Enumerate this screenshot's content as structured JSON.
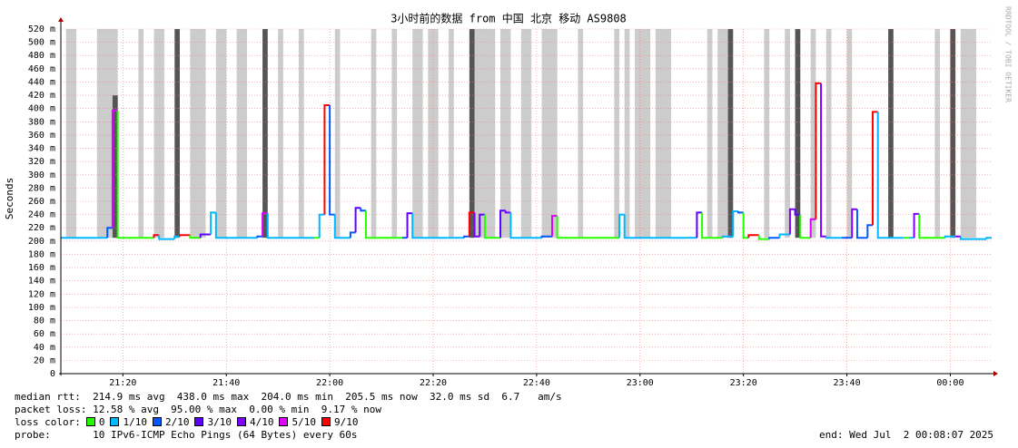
{
  "chart_data": {
    "type": "smokeping",
    "title": "3小时前的数据 from 中国 北京 移动 AS9808",
    "y_label": "Seconds",
    "side_label": "RRDTOOL / TOBI OETIKER",
    "ylim": [
      0,
      520
    ],
    "yticks": [
      0,
      {
        "value": 20,
        "label": "20 m"
      },
      {
        "value": 40,
        "label": "40 m"
      },
      {
        "value": 60,
        "label": "60 m"
      },
      {
        "value": 80,
        "label": "80 m"
      },
      {
        "value": 100,
        "label": "100 m"
      },
      {
        "value": 120,
        "label": "120 m"
      },
      {
        "value": 140,
        "label": "140 m"
      },
      {
        "value": 160,
        "label": "160 m"
      },
      {
        "value": 180,
        "label": "180 m"
      },
      {
        "value": 200,
        "label": "200 m"
      },
      {
        "value": 220,
        "label": "220 m"
      },
      {
        "value": 240,
        "label": "240 m"
      },
      {
        "value": 260,
        "label": "260 m"
      },
      {
        "value": 280,
        "label": "280 m"
      },
      {
        "value": 300,
        "label": "300 m"
      },
      {
        "value": 320,
        "label": "320 m"
      },
      {
        "value": 340,
        "label": "340 m"
      },
      {
        "value": 360,
        "label": "360 m"
      },
      {
        "value": 380,
        "label": "380 m"
      },
      {
        "value": 400,
        "label": "400 m"
      },
      {
        "value": 420,
        "label": "420 m"
      },
      {
        "value": 440,
        "label": "440 m"
      },
      {
        "value": 460,
        "label": "460 m"
      },
      {
        "value": 480,
        "label": "480 m"
      },
      {
        "value": 500,
        "label": "500 m"
      },
      {
        "value": 520,
        "label": "520 m"
      }
    ],
    "xlim": [
      "21:08",
      "00:08"
    ],
    "xticks": [
      "21:20",
      "21:40",
      "22:00",
      "22:20",
      "22:40",
      "23:00",
      "23:20",
      "23:40",
      "00:00"
    ],
    "grid": true,
    "smoke": [
      {
        "color": "#cccccc",
        "start": [
          "21:09",
          "21:15",
          "21:23",
          "21:26",
          "21:33",
          "21:38",
          "21:42",
          "21:50",
          "21:54",
          "22:01",
          "22:08",
          "22:12",
          "22:16",
          "22:19",
          "22:23",
          "22:28",
          "22:33",
          "22:37",
          "22:41",
          "22:48",
          "22:55",
          "22:57",
          "22:59",
          "23:03",
          "23:13",
          "23:15",
          "23:24",
          "23:28",
          "23:33",
          "23:36",
          "23:40",
          "23:57",
          "00:02"
        ],
        "end": [
          "21:11",
          "21:19",
          "21:24",
          "21:28",
          "21:36",
          "21:40",
          "21:44",
          "21:51",
          "21:55",
          "22:02",
          "22:09",
          "22:13",
          "22:18",
          "22:21",
          "22:24",
          "22:32",
          "22:35",
          "22:39",
          "22:44",
          "22:49",
          "22:56",
          "22:58",
          "23:02",
          "23:06",
          "23:14",
          "23:17",
          "23:25",
          "23:29",
          "23:34",
          "23:37",
          "23:41",
          "23:58",
          "00:05"
        ],
        "high": [
          520,
          520,
          520,
          520,
          520,
          520,
          520,
          520,
          520,
          520,
          520,
          520,
          520,
          520,
          520,
          520,
          520,
          520,
          520,
          520,
          520,
          520,
          520,
          520,
          520,
          520,
          520,
          520,
          520,
          520,
          520,
          520,
          520
        ]
      },
      {
        "color": "#555555",
        "start": [
          "21:18",
          "21:30",
          "21:47",
          "22:27",
          "23:17",
          "23:30",
          "23:48",
          "00:00"
        ],
        "end": [
          "21:19",
          "21:31",
          "21:48",
          "22:28",
          "23:18",
          "23:31",
          "23:49",
          "00:01"
        ],
        "high": [
          420,
          520,
          520,
          520,
          520,
          520,
          520,
          520
        ]
      }
    ],
    "median": {
      "x": [
        "21:08",
        "21:13",
        "21:17",
        "21:18",
        "21:19",
        "21:26",
        "21:27",
        "21:30",
        "21:31",
        "21:33",
        "21:35",
        "21:37",
        "21:38",
        "21:46",
        "21:47",
        "21:48",
        "21:57",
        "21:58",
        "21:59",
        "22:00",
        "22:01",
        "22:04",
        "22:05",
        "22:06",
        "22:07",
        "22:14",
        "22:15",
        "22:16",
        "22:24",
        "22:26",
        "22:27",
        "22:28",
        "22:29",
        "22:30",
        "22:33",
        "22:34",
        "22:35",
        "22:41",
        "22:43",
        "22:44",
        "22:55",
        "22:56",
        "22:57",
        "23:09",
        "23:11",
        "23:12",
        "23:16",
        "23:18",
        "23:19",
        "23:20",
        "23:21",
        "23:23",
        "23:25",
        "23:27",
        "23:29",
        "23:30",
        "23:31",
        "23:33",
        "23:34",
        "23:35",
        "23:36",
        "23:39",
        "23:41",
        "23:42",
        "23:44",
        "23:45",
        "23:46",
        "23:51",
        "23:52",
        "23:53",
        "23:54",
        "23:59",
        "00:01",
        "00:02",
        "00:07"
      ],
      "values": [
        205,
        205,
        220,
        397,
        205,
        209,
        203,
        207,
        209,
        205,
        210,
        243,
        205,
        207,
        242,
        205,
        205,
        240,
        405,
        240,
        205,
        213,
        250,
        246,
        205,
        205,
        242,
        205,
        205,
        207,
        243,
        207,
        240,
        205,
        246,
        243,
        205,
        207,
        238,
        205,
        205,
        240,
        205,
        205,
        243,
        205,
        207,
        245,
        243,
        205,
        209,
        203,
        205,
        210,
        248,
        240,
        205,
        233,
        438,
        207,
        205,
        205,
        248,
        205,
        224,
        395,
        205,
        205,
        205,
        241,
        205,
        207,
        207,
        203,
        205
      ],
      "loss": [
        1,
        1,
        2,
        5,
        0,
        6,
        1,
        1,
        6,
        0,
        3,
        1,
        1,
        2,
        5,
        1,
        0,
        1,
        6,
        2,
        1,
        2,
        3,
        2,
        0,
        2,
        3,
        1,
        1,
        2,
        6,
        4,
        3,
        0,
        3,
        4,
        1,
        2,
        5,
        0,
        0,
        1,
        1,
        1,
        3,
        0,
        1,
        1,
        2,
        0,
        6,
        0,
        2,
        1,
        4,
        3,
        0,
        5,
        6,
        4,
        1,
        2,
        4,
        2,
        2,
        6,
        1,
        0,
        1,
        4,
        0,
        1,
        4,
        1,
        1
      ]
    },
    "loss_legend": {
      "label": "loss color:",
      "entries": [
        {
          "name": "0",
          "color": "#26ff00"
        },
        {
          "name": "1/10",
          "color": "#00b8ff"
        },
        {
          "name": "2/10",
          "color": "#0059ff"
        },
        {
          "name": "3/10",
          "color": "#5e00ff"
        },
        {
          "name": "4/10",
          "color": "#7e00ff"
        },
        {
          "name": "5/10",
          "color": "#dd00ff"
        },
        {
          "name": "9/10",
          "color": "#ff0000"
        }
      ]
    },
    "stats": [
      "median rtt:  214.9 ms avg  438.0 ms max  204.0 ms min  205.5 ms now  32.0 ms sd  6.7   am/s",
      "packet loss: 12.58 % avg  95.00 % max  0.00 % min  9.17 % now"
    ],
    "probe": "probe:       10 IPv6-ICMP Echo Pings (64 Bytes) every 60s",
    "end": "end: Wed Jul  2 00:08:07 2025"
  }
}
